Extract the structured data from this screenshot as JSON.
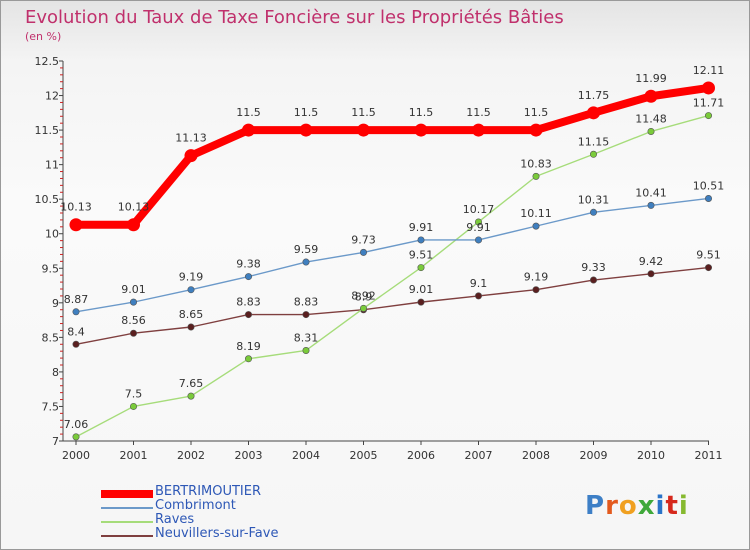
{
  "title": "Evolution du Taux de Taxe Foncière sur les Propriétés Bâties",
  "subtitle": "(en %)",
  "logo": {
    "text": "Proxiti",
    "letters": [
      "P",
      "r",
      "o",
      "x",
      "i",
      "t",
      "i"
    ],
    "colors": [
      "#3d7fc6",
      "#e35a1e",
      "#f0a020",
      "#3fa83a",
      "#2a73c8",
      "#d6281c",
      "#86b92f"
    ]
  },
  "chart_data": {
    "type": "line",
    "title": "Evolution du Taux de Taxe Foncière sur les Propriétés Bâties",
    "ylabel": "(en %)",
    "xlabel": "",
    "x": [
      "2000",
      "2001",
      "2002",
      "2003",
      "2004",
      "2005",
      "2006",
      "2007",
      "2008",
      "2009",
      "2010",
      "2011"
    ],
    "yticks": [
      "7",
      "7.5",
      "8",
      "8.5",
      "9",
      "9.5",
      "10",
      "10.5",
      "11",
      "11.5",
      "12",
      "12.5"
    ],
    "ylim": [
      7,
      12.5
    ],
    "grid": false,
    "legend_position": "bottom-left",
    "series": [
      {
        "name": "BERTRIMOUTIER",
        "color": "#ff0000",
        "marker": "#ff0000",
        "bold": true,
        "values": [
          10.13,
          10.13,
          11.13,
          11.5,
          11.5,
          11.5,
          11.5,
          11.5,
          11.5,
          11.75,
          11.99,
          12.11
        ],
        "labels": [
          "10.13",
          "10.13",
          "11.13",
          "11.5",
          "11.5",
          "11.5",
          "11.5",
          "11.5",
          "11.5",
          "11.75",
          "11.99",
          "12.11"
        ]
      },
      {
        "name": "Combrimont",
        "color": "#6b99c9",
        "marker": "#3f7fbf",
        "values": [
          8.87,
          9.01,
          9.19,
          9.38,
          9.59,
          9.73,
          9.91,
          9.91,
          10.11,
          10.31,
          10.41,
          10.51
        ],
        "labels": [
          "8.87",
          "9.01",
          "9.19",
          "9.38",
          "9.59",
          "9.73",
          "9.91",
          "9.91",
          "10.11",
          "10.31",
          "10.41",
          "10.51"
        ]
      },
      {
        "name": "Raves",
        "color": "#a6dc7a",
        "marker": "#7acb3a",
        "values": [
          7.06,
          7.5,
          7.65,
          8.19,
          8.31,
          8.92,
          9.51,
          10.17,
          10.83,
          11.15,
          11.48,
          11.71
        ],
        "labels": [
          "7.06",
          "7.5",
          "7.65",
          "8.19",
          "8.31",
          "8.92",
          "9.51",
          "10.17",
          "10.83",
          "11.15",
          "11.48",
          "11.71"
        ]
      },
      {
        "name": "Neuvillers-sur-Fave",
        "color": "#7f3f3f",
        "marker": "#5a1f1f",
        "values": [
          8.4,
          8.56,
          8.65,
          8.83,
          8.83,
          8.9,
          9.01,
          9.1,
          9.19,
          9.33,
          9.42,
          9.51
        ],
        "labels": [
          "8.4",
          "8.56",
          "8.65",
          "8.83",
          "8.83",
          "8.9",
          "9.01",
          "9.1",
          "9.19",
          "9.33",
          "9.42",
          "9.51"
        ]
      }
    ]
  }
}
